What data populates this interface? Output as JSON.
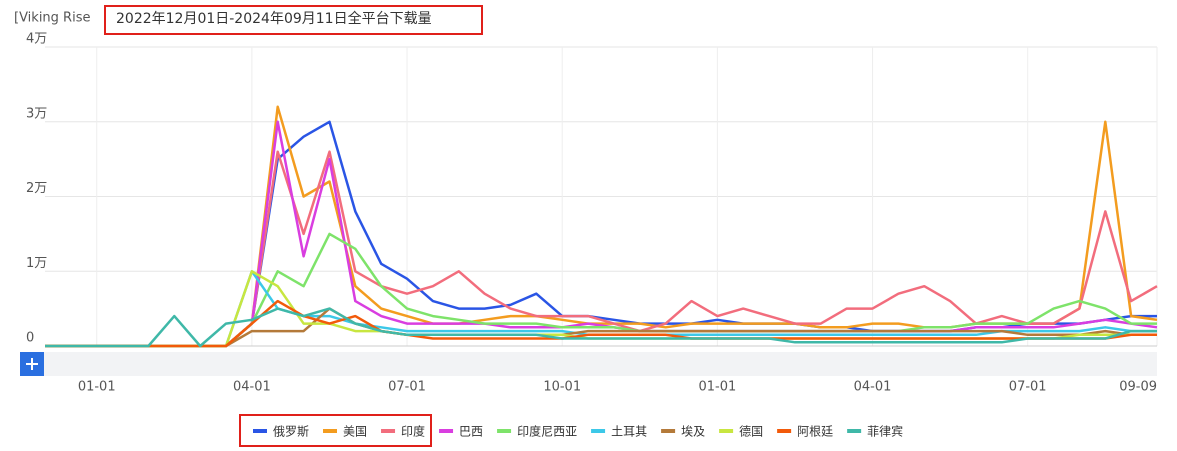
{
  "chart_data": {
    "type": "line",
    "title": "[Viking Rise",
    "subtitle": "2022年12月01日-2024年09月11日全平台下载量",
    "categories": [
      null,
      null,
      "01-01",
      null,
      null,
      null,
      null,
      null,
      "04-01",
      null,
      null,
      null,
      null,
      null,
      "07-01",
      null,
      null,
      null,
      null,
      null,
      "10-01",
      null,
      null,
      null,
      null,
      null,
      "01-01",
      null,
      null,
      null,
      null,
      null,
      "04-01",
      null,
      null,
      null,
      null,
      null,
      "07-01",
      null,
      null,
      null,
      null,
      "09-09"
    ],
    "ylim": [
      0,
      4
    ],
    "yticks": [
      0,
      {
        "value": 1,
        "label": "1万"
      },
      {
        "value": 2,
        "label": "2万"
      },
      {
        "value": 3,
        "label": "3万"
      },
      {
        "value": 4,
        "label": "4万"
      }
    ],
    "grid": true,
    "series": [
      {
        "name": "俄罗斯",
        "color": "#2a55e5",
        "values": [
          0,
          0,
          0,
          0,
          0,
          0,
          0,
          0,
          0.3,
          2.5,
          2.8,
          3.0,
          1.8,
          1.1,
          0.9,
          0.6,
          0.5,
          0.5,
          0.55,
          0.7,
          0.4,
          0.4,
          0.35,
          0.3,
          0.3,
          0.3,
          0.35,
          0.3,
          0.3,
          0.3,
          0.25,
          0.25,
          0.2,
          0.2,
          0.2,
          0.2,
          0.25,
          0.25,
          0.3,
          0.3,
          0.3,
          0.35,
          0.4,
          0.4
        ]
      },
      {
        "name": "美国",
        "color": "#f39c1f",
        "values": [
          0,
          0,
          0,
          0,
          0,
          0,
          0,
          0,
          0.3,
          3.2,
          2.0,
          2.2,
          0.8,
          0.5,
          0.4,
          0.3,
          0.3,
          0.35,
          0.4,
          0.4,
          0.35,
          0.3,
          0.3,
          0.3,
          0.25,
          0.3,
          0.3,
          0.3,
          0.3,
          0.3,
          0.25,
          0.25,
          0.3,
          0.3,
          0.25,
          0.25,
          0.3,
          0.3,
          0.3,
          0.3,
          0.5,
          3.0,
          0.4,
          0.35
        ]
      },
      {
        "name": "印度",
        "color": "#f26d7d",
        "values": [
          0,
          0,
          0,
          0,
          0,
          0,
          0,
          0,
          0.3,
          2.6,
          1.5,
          2.6,
          1.0,
          0.8,
          0.7,
          0.8,
          1.0,
          0.7,
          0.5,
          0.4,
          0.4,
          0.4,
          0.3,
          0.2,
          0.3,
          0.6,
          0.4,
          0.5,
          0.4,
          0.3,
          0.3,
          0.5,
          0.5,
          0.7,
          0.8,
          0.6,
          0.3,
          0.4,
          0.3,
          0.3,
          0.5,
          1.8,
          0.6,
          0.8
        ]
      },
      {
        "name": "巴西",
        "color": "#d93ee0",
        "values": [
          0,
          0,
          0,
          0,
          0,
          0,
          0,
          0,
          0.3,
          3.0,
          1.2,
          2.5,
          0.6,
          0.4,
          0.3,
          0.3,
          0.3,
          0.3,
          0.25,
          0.25,
          0.25,
          0.3,
          0.25,
          0.2,
          0.2,
          0.2,
          0.2,
          0.2,
          0.2,
          0.2,
          0.2,
          0.2,
          0.2,
          0.2,
          0.2,
          0.2,
          0.25,
          0.25,
          0.25,
          0.25,
          0.3,
          0.35,
          0.3,
          0.25
        ]
      },
      {
        "name": "印度尼西亚",
        "color": "#7ee36a",
        "values": [
          0,
          0,
          0,
          0,
          0,
          0,
          0,
          0,
          0.3,
          1.0,
          0.8,
          1.5,
          1.3,
          0.8,
          0.5,
          0.4,
          0.35,
          0.3,
          0.3,
          0.3,
          0.25,
          0.25,
          0.25,
          0.2,
          0.2,
          0.2,
          0.2,
          0.2,
          0.2,
          0.2,
          0.2,
          0.2,
          0.2,
          0.2,
          0.25,
          0.25,
          0.3,
          0.3,
          0.3,
          0.5,
          0.6,
          0.5,
          0.3,
          0.3
        ]
      },
      {
        "name": "土耳其",
        "color": "#3cc8e8",
        "values": [
          0,
          0,
          0,
          0,
          0,
          0,
          0,
          0,
          1.0,
          0.5,
          0.4,
          0.4,
          0.3,
          0.25,
          0.2,
          0.2,
          0.2,
          0.2,
          0.2,
          0.2,
          0.2,
          0.15,
          0.15,
          0.15,
          0.15,
          0.15,
          0.15,
          0.15,
          0.15,
          0.15,
          0.15,
          0.15,
          0.15,
          0.15,
          0.15,
          0.15,
          0.15,
          0.2,
          0.2,
          0.2,
          0.2,
          0.25,
          0.2,
          0.2
        ]
      },
      {
        "name": "埃及",
        "color": "#b47a3a",
        "values": [
          0,
          0,
          0,
          0,
          0,
          0,
          0,
          0,
          0.2,
          0.2,
          0.2,
          0.5,
          0.3,
          0.2,
          0.15,
          0.15,
          0.15,
          0.15,
          0.15,
          0.15,
          0.15,
          0.2,
          0.2,
          0.2,
          0.2,
          0.2,
          0.2,
          0.2,
          0.2,
          0.2,
          0.2,
          0.2,
          0.2,
          0.2,
          0.2,
          0.2,
          0.2,
          0.2,
          0.15,
          0.15,
          0.15,
          0.2,
          0.15,
          0.15
        ]
      },
      {
        "name": "德国",
        "color": "#c8e640",
        "values": [
          0,
          0,
          0,
          0,
          0,
          0,
          0,
          0,
          1.0,
          0.8,
          0.3,
          0.3,
          0.2,
          0.2,
          0.15,
          0.15,
          0.15,
          0.15,
          0.15,
          0.15,
          0.15,
          0.1,
          0.1,
          0.1,
          0.1,
          0.1,
          0.1,
          0.1,
          0.1,
          0.1,
          0.1,
          0.1,
          0.1,
          0.1,
          0.1,
          0.1,
          0.1,
          0.1,
          0.1,
          0.1,
          0.15,
          0.15,
          0.15,
          0.15
        ]
      },
      {
        "name": "阿根廷",
        "color": "#f25a0a",
        "values": [
          0,
          0,
          0,
          0,
          0,
          0,
          0,
          0,
          0.3,
          0.6,
          0.4,
          0.3,
          0.4,
          0.2,
          0.15,
          0.1,
          0.1,
          0.1,
          0.1,
          0.1,
          0.1,
          0.15,
          0.15,
          0.15,
          0.15,
          0.1,
          0.1,
          0.1,
          0.1,
          0.1,
          0.1,
          0.1,
          0.1,
          0.1,
          0.1,
          0.1,
          0.1,
          0.1,
          0.1,
          0.1,
          0.1,
          0.1,
          0.15,
          0.15
        ]
      },
      {
        "name": "菲律宾",
        "color": "#3fb8a8",
        "values": [
          0,
          0,
          0,
          0,
          0,
          0.4,
          0,
          0.3,
          0.35,
          0.5,
          0.4,
          0.5,
          0.3,
          0.2,
          0.15,
          0.15,
          0.15,
          0.15,
          0.15,
          0.15,
          0.1,
          0.1,
          0.1,
          0.1,
          0.1,
          0.1,
          0.1,
          0.1,
          0.1,
          0.05,
          0.05,
          0.05,
          0.05,
          0.05,
          0.05,
          0.05,
          0.05,
          0.05,
          0.1,
          0.1,
          0.1,
          0.1,
          0.2,
          0.2
        ]
      }
    ]
  }
}
